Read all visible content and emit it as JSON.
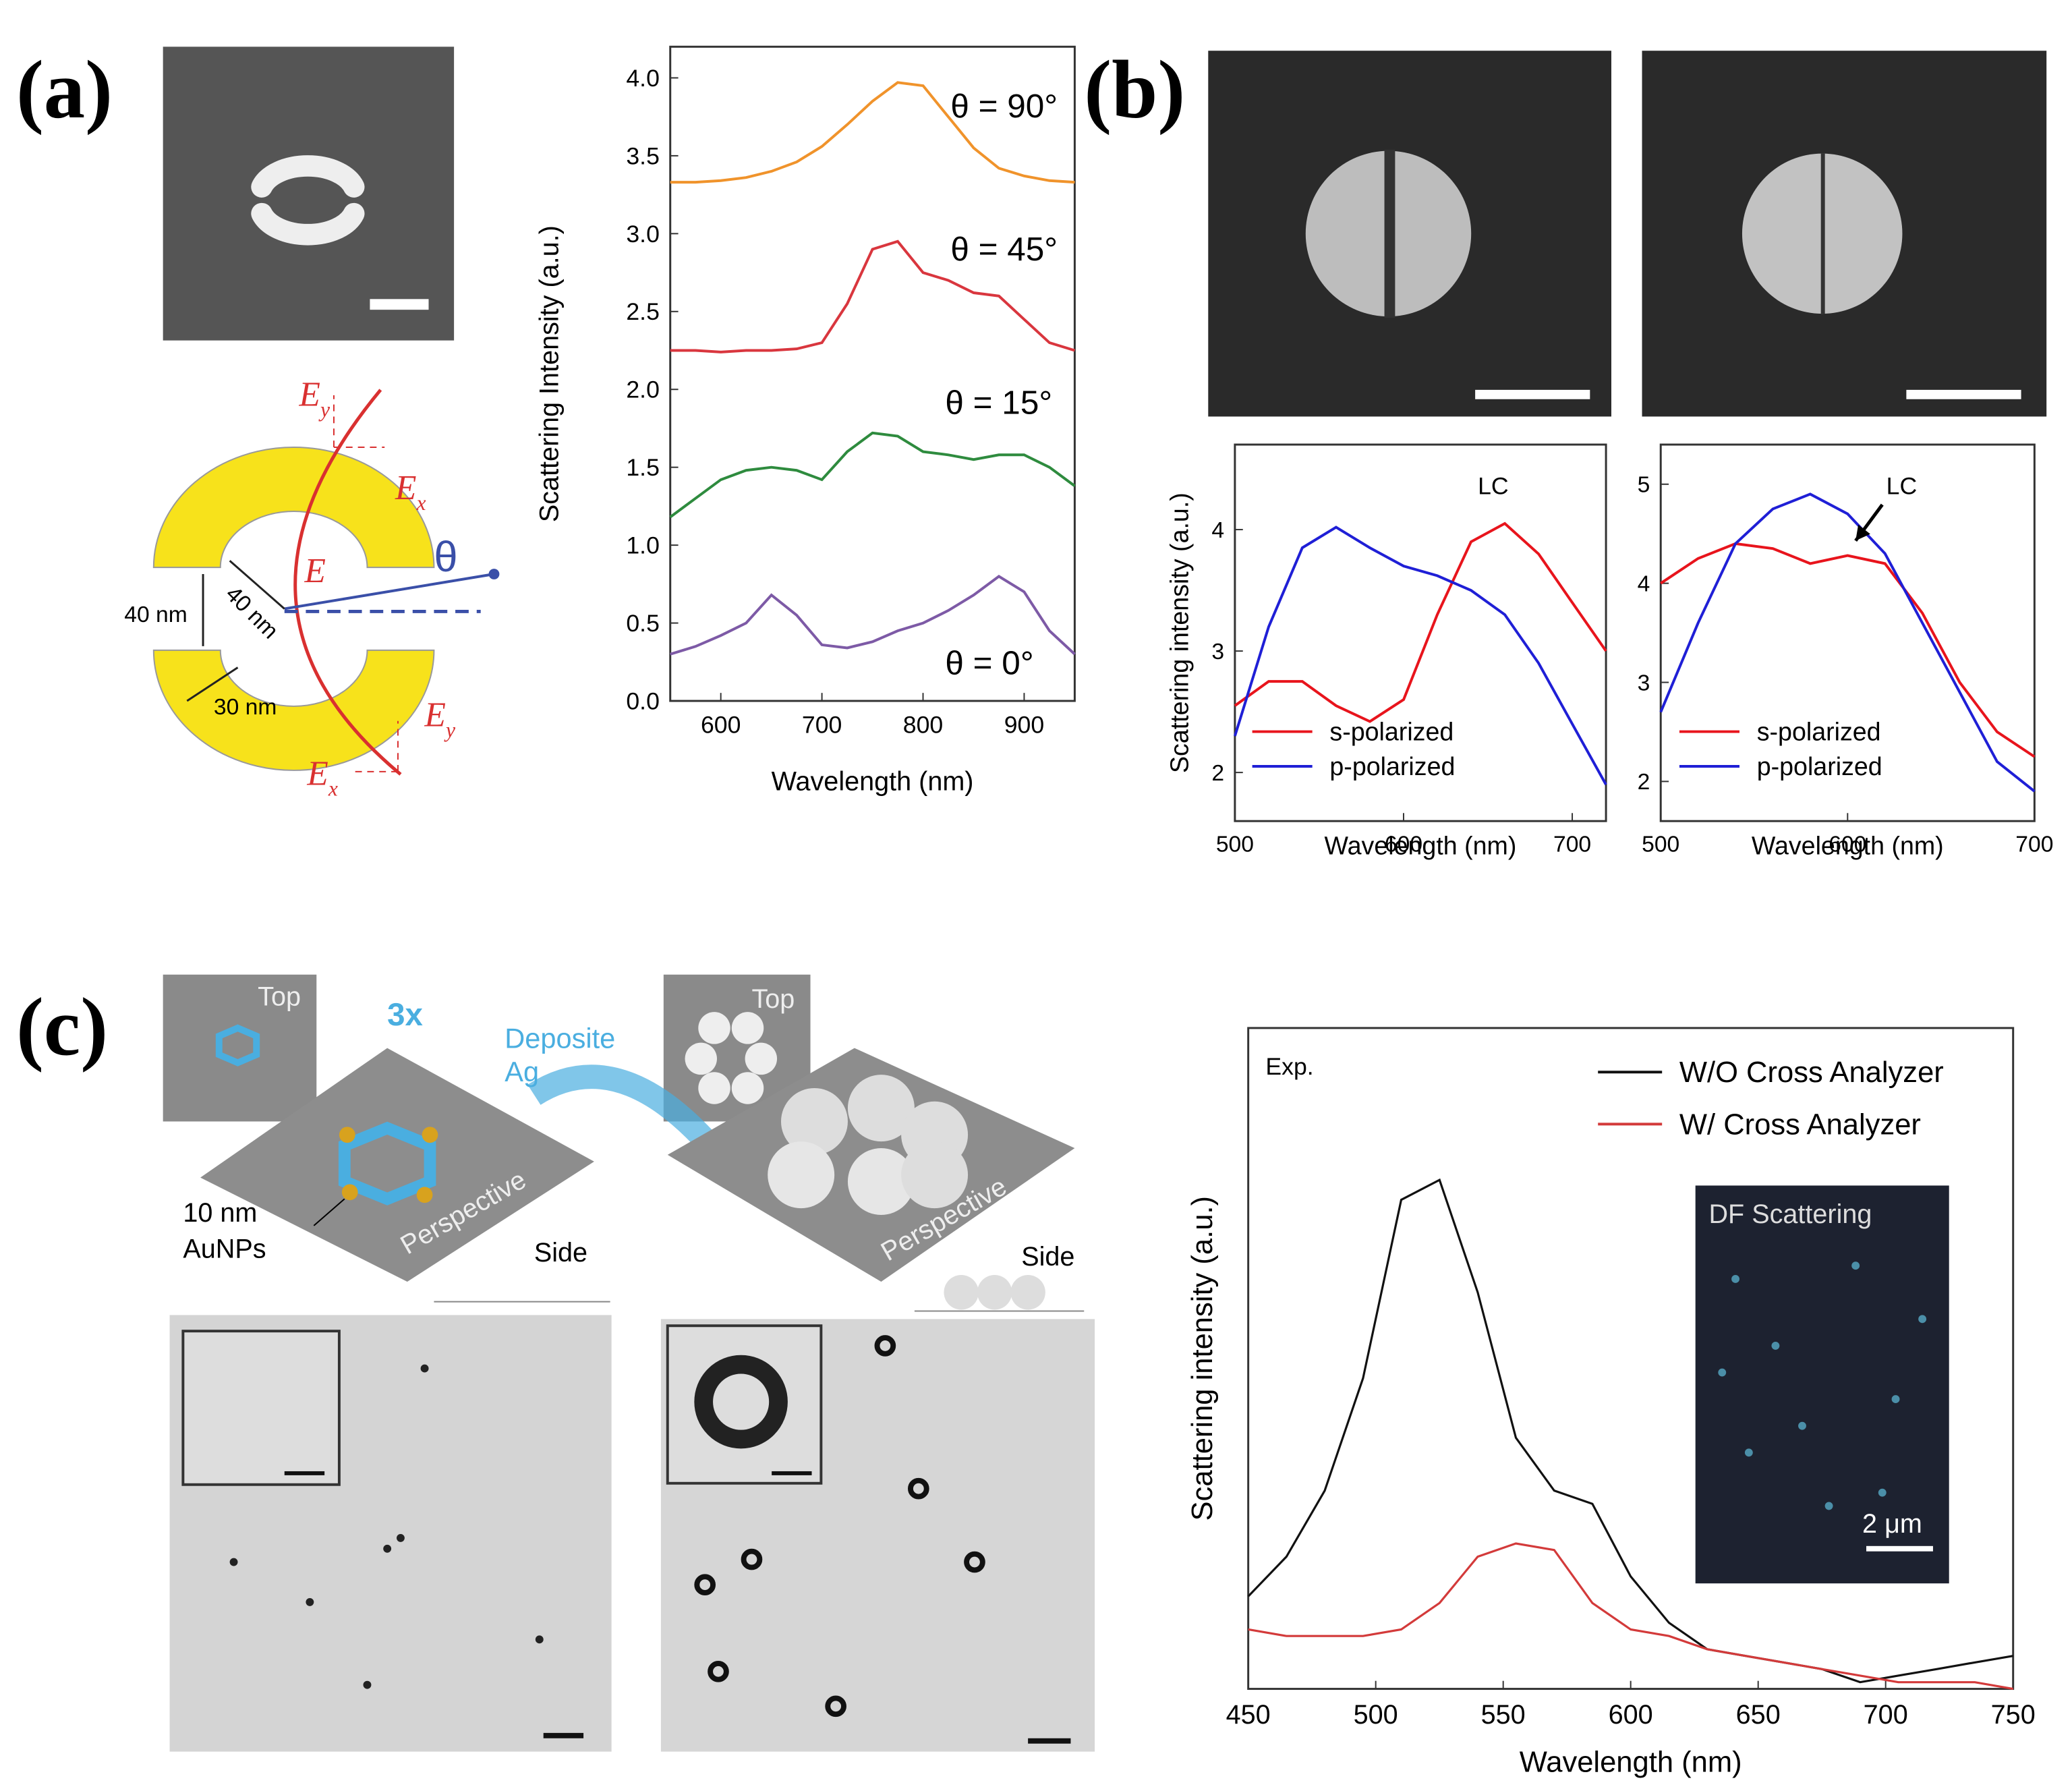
{
  "panel_labels": [
    "(a)",
    "(b)",
    "(c)"
  ],
  "diagram_a": {
    "labels": [
      {
        "main": "E",
        "sub": "y"
      },
      {
        "main": "E",
        "sub": "x"
      },
      {
        "main": "E",
        "sub": "y"
      },
      {
        "main": "E",
        "sub": "x"
      }
    ],
    "field": "E",
    "angle": "θ",
    "dims": [
      "40 nm",
      "40 nm",
      "30 nm"
    ]
  },
  "diagram_c": {
    "views": [
      "Top",
      "Top"
    ],
    "repeat": "3x",
    "step": [
      "Deposite",
      "Ag"
    ],
    "particles": [
      "10 nm",
      "AuNPs"
    ],
    "perspective": [
      "Perspective",
      "Perspective"
    ],
    "side": [
      "Side",
      "Side"
    ]
  },
  "chart_data": [
    {
      "type": "line",
      "xlabel": "Wavelength (nm)",
      "ylabel": "Scattering Intensity (a.u.)",
      "x": [
        550,
        575,
        600,
        625,
        650,
        675,
        700,
        725,
        750,
        775,
        800,
        825,
        850,
        875,
        900,
        925,
        950
      ],
      "xlim": [
        550,
        950
      ],
      "xticks": [
        600,
        700,
        800,
        900
      ],
      "ylim": [
        0,
        4.2
      ],
      "yticks": [
        {
          "value": 0,
          "label": "0.0"
        },
        0.5,
        {
          "value": 1,
          "label": "1.0"
        },
        1.5,
        {
          "value": 2,
          "label": "2.0"
        },
        2.5,
        {
          "value": 3,
          "label": "3.0"
        },
        3.5,
        {
          "value": 4,
          "label": "4.0"
        }
      ],
      "series": [
        {
          "name": "θ = 90°",
          "color": "#f0932b",
          "values": [
            3.33,
            3.33,
            3.34,
            3.36,
            3.4,
            3.46,
            3.56,
            3.7,
            3.85,
            3.97,
            3.95,
            3.75,
            3.55,
            3.42,
            3.37,
            3.34,
            3.33
          ]
        },
        {
          "name": "θ = 45°",
          "color": "#d9363e",
          "values": [
            2.25,
            2.25,
            2.24,
            2.25,
            2.25,
            2.26,
            2.3,
            2.55,
            2.9,
            2.95,
            2.75,
            2.7,
            2.62,
            2.6,
            2.45,
            2.3,
            2.25
          ]
        },
        {
          "name": "θ = 15°",
          "color": "#2e8b3e",
          "values": [
            1.18,
            1.3,
            1.42,
            1.48,
            1.5,
            1.48,
            1.42,
            1.6,
            1.72,
            1.7,
            1.6,
            1.58,
            1.55,
            1.58,
            1.58,
            1.5,
            1.38
          ]
        },
        {
          "name": "θ = 0°",
          "color": "#7d5aa6",
          "values": [
            0.3,
            0.35,
            0.42,
            0.5,
            0.68,
            0.55,
            0.36,
            0.34,
            0.38,
            0.45,
            0.5,
            0.58,
            0.68,
            0.8,
            0.7,
            0.45,
            0.3
          ]
        }
      ]
    },
    {
      "type": "line",
      "xlabel": "Wavelength (nm)",
      "ylabel": "Scattering intensity (a.u.)",
      "x": [
        500,
        520,
        540,
        560,
        580,
        600,
        620,
        640,
        660,
        680,
        700,
        720
      ],
      "xlim": [
        500,
        720
      ],
      "xticks": [
        500,
        600,
        700
      ],
      "ylim": [
        1.6,
        4.7
      ],
      "yticks": [
        2,
        3,
        4
      ],
      "series": [
        {
          "name": "s-polarized",
          "color": "#e8141c",
          "values": [
            2.55,
            2.75,
            2.75,
            2.55,
            2.42,
            2.6,
            3.3,
            3.9,
            4.05,
            3.8,
            3.4,
            3.0
          ]
        },
        {
          "name": "p-polarized",
          "color": "#1f1fd6",
          "values": [
            2.3,
            3.2,
            3.85,
            4.02,
            3.85,
            3.7,
            3.62,
            3.5,
            3.3,
            2.9,
            2.4,
            1.9
          ]
        }
      ],
      "annotations": [
        "LC"
      ]
    },
    {
      "type": "line",
      "xlabel": "Wavelength (nm)",
      "x": [
        500,
        520,
        540,
        560,
        580,
        600,
        620,
        640,
        660,
        680,
        700
      ],
      "xlim": [
        500,
        700
      ],
      "xticks": [
        500,
        600,
        700
      ],
      "ylim": [
        1.6,
        5.4
      ],
      "yticks": [
        2,
        3,
        4,
        5
      ],
      "series": [
        {
          "name": "s-polarized",
          "color": "#e8141c",
          "values": [
            4.0,
            4.25,
            4.4,
            4.35,
            4.2,
            4.28,
            4.2,
            3.7,
            3.0,
            2.5,
            2.25
          ]
        },
        {
          "name": "p-polarized",
          "color": "#1f1fd6",
          "values": [
            2.7,
            3.6,
            4.4,
            4.75,
            4.9,
            4.7,
            4.3,
            3.6,
            2.9,
            2.2,
            1.9
          ]
        }
      ],
      "annotations": [
        "LC"
      ]
    },
    {
      "type": "line",
      "xlabel": "Wavelength (nm)",
      "ylabel": "Scattering intensity (a.u.)",
      "x": [
        450,
        465,
        480,
        495,
        510,
        525,
        540,
        555,
        570,
        585,
        600,
        615,
        630,
        645,
        660,
        675,
        690,
        705,
        720,
        735,
        750
      ],
      "xlim": [
        450,
        750
      ],
      "xticks": [
        450,
        500,
        550,
        600,
        650,
        700,
        750
      ],
      "ylim": [
        0,
        1
      ],
      "series": [
        {
          "name": "W/O Cross Analyzer",
          "color": "#111111",
          "values": [
            0.14,
            0.2,
            0.3,
            0.47,
            0.74,
            0.77,
            0.6,
            0.38,
            0.3,
            0.28,
            0.17,
            0.1,
            0.06,
            0.05,
            0.04,
            0.03,
            0.01,
            0.02,
            0.03,
            0.04,
            0.05
          ]
        },
        {
          "name": "W/ Cross Analyzer",
          "color": "#d33a3a",
          "values": [
            0.09,
            0.08,
            0.08,
            0.08,
            0.09,
            0.13,
            0.2,
            0.22,
            0.21,
            0.13,
            0.09,
            0.08,
            0.06,
            0.05,
            0.04,
            0.03,
            0.02,
            0.01,
            0.01,
            0.01,
            0
          ]
        }
      ],
      "annotations": [
        "Exp."
      ],
      "inset": {
        "title": "DF Scattering",
        "scale": "2 μm"
      }
    }
  ]
}
